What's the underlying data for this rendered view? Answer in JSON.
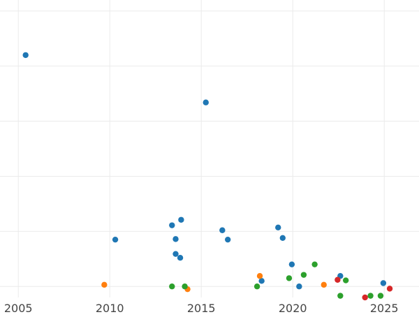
{
  "chart_data": {
    "type": "scatter",
    "title": "",
    "xlabel": "",
    "ylabel": "",
    "xlim": [
      2004,
      2026.9
    ],
    "ylim": [
      -2.0,
      52.0
    ],
    "x_ticks": [
      2005,
      2010,
      2015,
      2020,
      2025
    ],
    "y_gridlines": [
      0,
      10,
      20,
      30,
      40,
      50
    ],
    "grid": true,
    "legend": "none",
    "series": [
      {
        "color": "#1f77b4",
        "points": [
          [
            2005.4,
            42.0
          ],
          [
            2010.3,
            8.5
          ],
          [
            2013.4,
            11.1
          ],
          [
            2013.6,
            8.6
          ],
          [
            2013.6,
            5.9
          ],
          [
            2013.85,
            5.2
          ],
          [
            2013.9,
            12.1
          ],
          [
            2015.25,
            33.4
          ],
          [
            2016.15,
            10.2
          ],
          [
            2016.45,
            8.5
          ],
          [
            2018.3,
            1.0
          ],
          [
            2019.2,
            10.7
          ],
          [
            2019.45,
            8.8
          ],
          [
            2019.95,
            4.0
          ],
          [
            2020.35,
            0.0
          ],
          [
            2022.6,
            1.9
          ],
          [
            2024.95,
            0.6
          ]
        ]
      },
      {
        "color": "#ff7f0e",
        "points": [
          [
            2009.7,
            0.3
          ],
          [
            2014.25,
            -0.5
          ],
          [
            2018.2,
            1.9
          ],
          [
            2021.7,
            0.3
          ]
        ]
      },
      {
        "color": "#2ca02c",
        "points": [
          [
            2013.4,
            0.0
          ],
          [
            2014.1,
            0.0
          ],
          [
            2018.05,
            0.0
          ],
          [
            2019.8,
            1.5
          ],
          [
            2020.6,
            2.1
          ],
          [
            2021.2,
            4.0
          ],
          [
            2022.6,
            -1.7
          ],
          [
            2022.9,
            1.1
          ],
          [
            2024.25,
            -1.7
          ],
          [
            2024.8,
            -1.7
          ]
        ]
      },
      {
        "color": "#d62728",
        "points": [
          [
            2022.45,
            1.2
          ],
          [
            2023.95,
            -2.0
          ],
          [
            2025.3,
            -0.4
          ]
        ]
      }
    ]
  }
}
